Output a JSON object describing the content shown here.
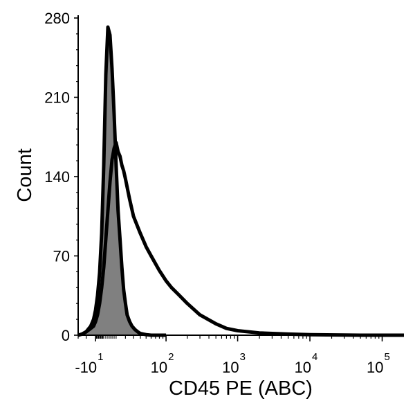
{
  "chart_data": {
    "type": "area",
    "title": "",
    "xlabel": "CD45 PE (ABC)",
    "ylabel": "Count",
    "xscale": "biexponential",
    "xlim": [
      -30,
      200000
    ],
    "ylim": [
      0,
      280
    ],
    "y_ticks": [
      "0",
      "70",
      "140",
      "210",
      "280"
    ],
    "x_ticks": [
      {
        "value": -10,
        "base": "-10",
        "exp": "1"
      },
      {
        "value": 100,
        "base": "10",
        "exp": "2"
      },
      {
        "value": 1000,
        "base": "10",
        "exp": "3"
      },
      {
        "value": 10000,
        "base": "10",
        "exp": "4"
      },
      {
        "value": 100000,
        "base": "10",
        "exp": "5"
      }
    ],
    "grid": false,
    "legend": "none",
    "series": [
      {
        "style": "filled",
        "fill": "#808080",
        "stroke": "#000000",
        "x": [
          -30,
          -25,
          -20,
          -15,
          -12,
          -10,
          -8,
          -6,
          -4,
          -2,
          0,
          2,
          4,
          6,
          8,
          10,
          12,
          14,
          16,
          18,
          20,
          22,
          25,
          28,
          32,
          36,
          40,
          45,
          50,
          60,
          80,
          100
        ],
        "y": [
          0,
          1,
          3,
          8,
          14,
          22,
          35,
          55,
          90,
          150,
          230,
          272,
          265,
          235,
          195,
          150,
          110,
          85,
          60,
          40,
          28,
          18,
          12,
          8,
          5,
          3,
          1.5,
          1,
          0.5,
          0,
          0,
          0
        ]
      },
      {
        "style": "outline",
        "fill": "none",
        "stroke": "#000000",
        "x": [
          -30,
          -25,
          -20,
          -15,
          -12,
          -10,
          -8,
          -6,
          -4,
          -2,
          0,
          2,
          4,
          6,
          8,
          10,
          12,
          14,
          16,
          18,
          20,
          25,
          30,
          40,
          50,
          60,
          70,
          80,
          100,
          120,
          150,
          200,
          300,
          500,
          700,
          1000,
          2000,
          5000,
          10000,
          50000,
          200000
        ],
        "y": [
          0,
          1,
          3,
          6,
          8,
          12,
          18,
          28,
          42,
          60,
          85,
          110,
          135,
          155,
          165,
          170,
          162,
          158,
          150,
          145,
          138,
          120,
          105,
          90,
          78,
          70,
          63,
          57,
          48,
          42,
          36,
          28,
          18,
          10,
          6,
          4,
          2,
          1,
          0.5,
          0,
          0
        ]
      }
    ]
  }
}
